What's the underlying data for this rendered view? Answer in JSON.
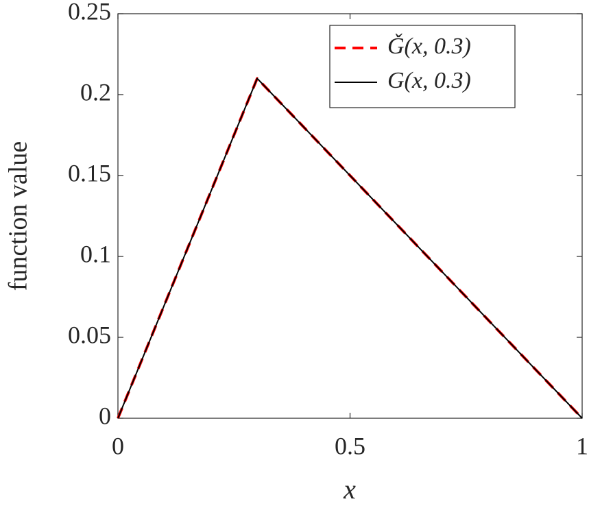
{
  "chart_data": {
    "type": "line",
    "xlabel": "x",
    "ylabel": "function value",
    "x": [
      0,
      0.3,
      1
    ],
    "series": [
      {
        "name": "Ǧ(x, 0.3)",
        "color": "#ff0000",
        "linestyle": "dashed",
        "values": [
          0,
          0.21,
          0
        ]
      },
      {
        "name": "G(x, 0.3)",
        "color": "#000000",
        "linestyle": "solid",
        "values": [
          0,
          0.21,
          0
        ]
      }
    ],
    "xlim": [
      0,
      1
    ],
    "xticks": [
      0,
      0.5,
      1
    ],
    "ylim": [
      0,
      0.25
    ],
    "yticks": [
      0,
      0.05,
      0.1,
      0.15,
      0.2,
      0.25
    ],
    "legend": "upper right"
  }
}
